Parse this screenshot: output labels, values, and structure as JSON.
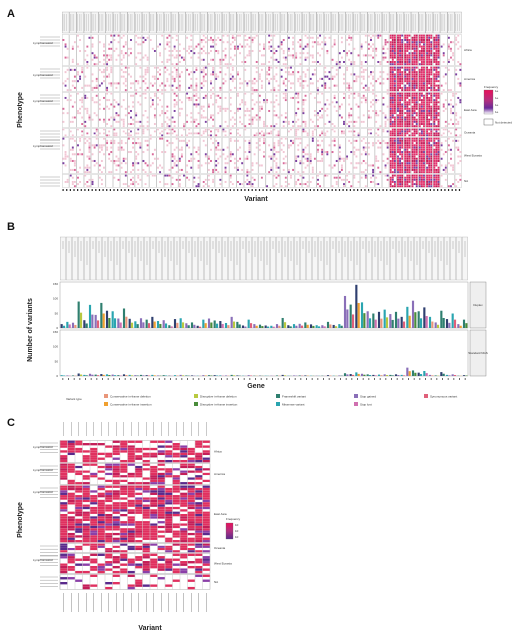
{
  "panels": [
    {
      "letter": "A",
      "xlabel": "Variant",
      "ylabel": "Phenotype"
    },
    {
      "letter": "B",
      "xlabel": "Gene",
      "ylabel": "Number of variants"
    },
    {
      "letter": "C",
      "xlabel": "Variant",
      "ylabel": "Phenotype"
    }
  ],
  "regions": [
    "Africa",
    "America",
    "East Asia",
    "Oceania",
    "West Eurasia",
    "NA"
  ],
  "phenotype_short": [
    "Lymphomatoid",
    "Lymphomatoid",
    "Lymphomatoid",
    "Lymphomatoid",
    "Lymphomatoid"
  ],
  "legend_a": {
    "title": "Frequency",
    "ticks": [
      "1e",
      "1e",
      "1e",
      "1e"
    ],
    "na": "Not detected"
  },
  "legend_c": {
    "title": "Frequency",
    "ticks": [
      "10",
      "10",
      "10"
    ]
  },
  "facets_b": [
    "Duplex",
    "Standard NGS"
  ],
  "legend_b": {
    "title": "Variant type",
    "items": [
      {
        "label": "Conservative in-frame deletion",
        "color": "#e9967a"
      },
      {
        "label": "Conservative in-frame insertion",
        "color": "#f0a030"
      },
      {
        "label": "Disruptive in-frame deletion",
        "color": "#b8c940"
      },
      {
        "label": "Disruptive in-frame insertion",
        "color": "#4a8c3a"
      },
      {
        "label": "Frameshift variant",
        "color": "#2f7f6f"
      },
      {
        "label": "Missense variant",
        "color": "#2aa5b0"
      },
      {
        "label": "Stop gained",
        "color": "#8a6fb8"
      },
      {
        "label": "Stop lost",
        "color": "#d070b0"
      },
      {
        "label": "Synonymous variant",
        "color": "#e0607a"
      }
    ]
  },
  "chart_data": [
    {
      "type": "heatmap",
      "panel": "A",
      "xlabel": "Variant",
      "ylabel": "Phenotype",
      "facets": [
        "Africa",
        "America",
        "East Asia",
        "Oceania",
        "West Eurasia",
        "NA"
      ],
      "color_scale": [
        "#ffffff",
        "#f3c9d6",
        "#e0508a",
        "#7b3fa0",
        "#3d1a78"
      ]
    },
    {
      "type": "bar",
      "panel": "B",
      "xlabel": "Gene",
      "ylabel": "Number of variants",
      "facets": [
        "Duplex",
        "Standard NGS"
      ],
      "ylim": [
        0,
        150
      ],
      "yticks": [
        0,
        50,
        100,
        150
      ],
      "duplex_totals": [
        14,
        22,
        19,
        95,
        28,
        83,
        47,
        90,
        62,
        60,
        34,
        70,
        33,
        24,
        35,
        30,
        40,
        25,
        28,
        10,
        32,
        35,
        17,
        20,
        8,
        30,
        34,
        27,
        25,
        18,
        40,
        22,
        9,
        30,
        14,
        12,
        9,
        8,
        14,
        36,
        10,
        14,
        15,
        20,
        13,
        10,
        10,
        22,
        11,
        14,
        115,
        84,
        155,
        92,
        60,
        52,
        58,
        66,
        50,
        58,
        40,
        76,
        98,
        60,
        74,
        40,
        20,
        62,
        32,
        52,
        14,
        30
      ],
      "standard_totals": [
        3,
        2,
        2,
        9,
        4,
        8,
        5,
        7,
        6,
        5,
        3,
        6,
        4,
        3,
        4,
        3,
        4,
        2,
        3,
        1,
        3,
        4,
        2,
        2,
        1,
        3,
        3,
        3,
        2,
        2,
        4,
        2,
        1,
        3,
        1,
        1,
        1,
        1,
        2,
        4,
        1,
        2,
        2,
        2,
        1,
        1,
        1,
        3,
        1,
        2,
        10,
        7,
        13,
        8,
        6,
        4,
        5,
        6,
        4,
        6,
        4,
        30,
        20,
        12,
        18,
        4,
        2,
        14,
        4,
        6,
        1,
        3
      ]
    },
    {
      "type": "heatmap",
      "panel": "C",
      "xlabel": "Variant",
      "ylabel": "Phenotype",
      "facets": [
        "Africa",
        "America",
        "East Asia",
        "Oceania",
        "West Eurasia",
        "NA"
      ],
      "legend_ticks": [
        "10",
        "10",
        "10"
      ],
      "color_scale": [
        "#ffffff",
        "#e0306a",
        "#c81f5a",
        "#8b3fa8",
        "#5a2a8c"
      ]
    }
  ]
}
